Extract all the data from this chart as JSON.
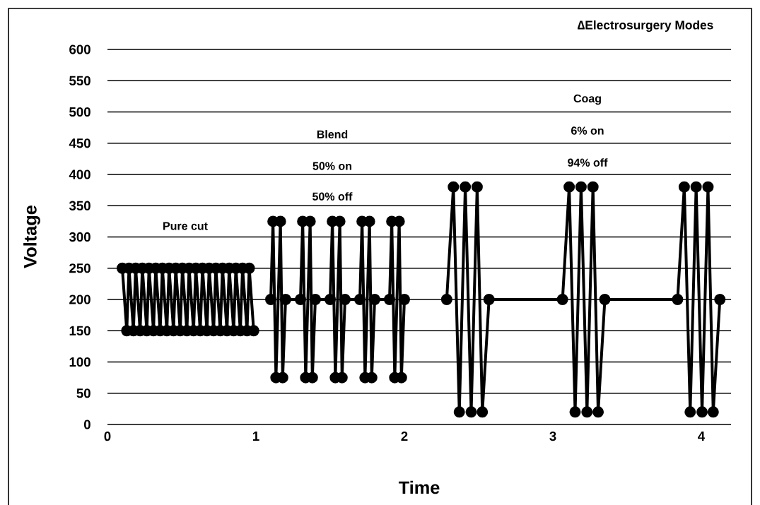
{
  "chart_data": {
    "type": "line",
    "title": "∆Electrosurgery Modes",
    "xlabel": "Time",
    "ylabel": "Voltage",
    "xlim": [
      0,
      4.2
    ],
    "xticks": [
      0,
      1,
      2,
      3,
      4
    ],
    "ylim": [
      0,
      600
    ],
    "yticks": [
      0,
      50,
      100,
      150,
      200,
      250,
      300,
      350,
      400,
      450,
      500,
      550,
      600
    ],
    "grid": "y",
    "marker": "circle",
    "line_style": "solid",
    "series": [
      {
        "color": "#000000",
        "x": [
          0.1,
          0.13,
          0.145,
          0.175,
          0.19,
          0.22,
          0.235,
          0.265,
          0.28,
          0.31,
          0.325,
          0.355,
          0.37,
          0.4,
          0.415,
          0.445,
          0.46,
          0.49,
          0.505,
          0.535,
          0.55,
          0.58,
          0.595,
          0.625,
          0.64,
          0.67,
          0.685,
          0.715,
          0.73,
          0.76,
          0.775,
          0.805,
          0.82,
          0.85,
          0.865,
          0.895,
          0.91,
          0.94,
          0.955,
          0.985
        ],
        "values": [
          250,
          150,
          250,
          150,
          250,
          150,
          250,
          150,
          250,
          150,
          250,
          150,
          250,
          150,
          250,
          150,
          250,
          150,
          250,
          150,
          250,
          150,
          250,
          150,
          250,
          150,
          250,
          150,
          250,
          150,
          250,
          150,
          250,
          150,
          250,
          150,
          250,
          150,
          250,
          150
        ]
      },
      {
        "color": "#000000",
        "x": [
          1.1,
          1.115,
          1.135,
          1.165,
          1.18,
          1.2,
          1.3,
          1.315,
          1.335,
          1.365,
          1.38,
          1.4,
          1.5,
          1.515,
          1.535,
          1.565,
          1.58,
          1.6,
          1.7,
          1.715,
          1.735,
          1.765,
          1.78,
          1.8,
          1.9,
          1.915,
          1.935,
          1.965,
          1.98,
          2.0
        ],
        "values": [
          200,
          325,
          75,
          325,
          75,
          200,
          200,
          325,
          75,
          325,
          75,
          200,
          200,
          325,
          75,
          325,
          75,
          200,
          200,
          325,
          75,
          325,
          75,
          200,
          200,
          325,
          75,
          325,
          75,
          200
        ]
      },
      {
        "color": "#000000",
        "x": [
          2.285,
          2.33,
          2.37,
          2.41,
          2.45,
          2.49,
          2.525,
          2.57,
          3.065,
          3.11,
          3.15,
          3.19,
          3.23,
          3.27,
          3.305,
          3.35,
          3.84,
          3.885,
          3.925,
          3.965,
          4.005,
          4.045,
          4.08,
          4.125
        ],
        "values": [
          200,
          380,
          20,
          380,
          20,
          380,
          20,
          200,
          200,
          380,
          20,
          380,
          20,
          380,
          20,
          200,
          200,
          380,
          20,
          380,
          20,
          380,
          20,
          200
        ]
      }
    ],
    "annotations": [
      "Pure cut",
      "Blend",
      "50% on",
      "50% off",
      "Coag",
      "6% on",
      "94% off"
    ]
  }
}
